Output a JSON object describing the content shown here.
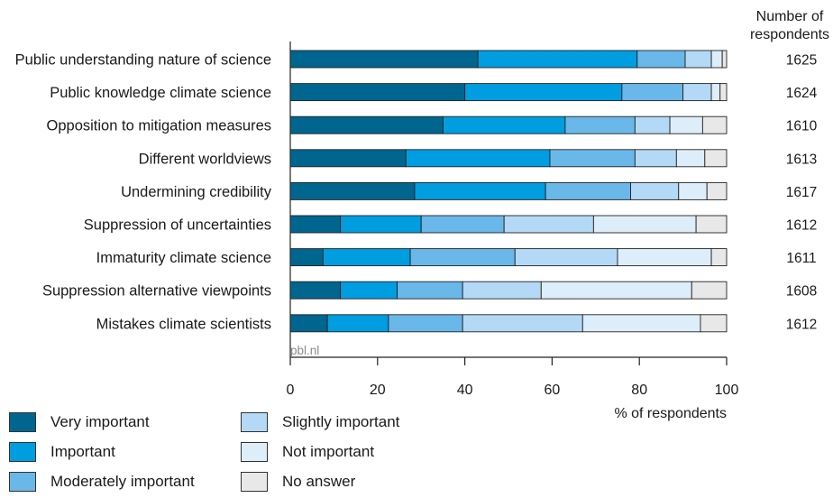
{
  "chart_data": {
    "type": "bar",
    "orientation": "horizontal",
    "stacked": true,
    "categories": [
      "Public understanding nature of science",
      "Public knowledge climate science",
      "Opposition to mitigation measures",
      "Different worldviews",
      "Undermining credibility",
      "Suppression of uncertainties",
      "Immaturity climate science",
      "Suppression alternative viewpoints",
      "Mistakes climate scientists"
    ],
    "respondents": [
      "1625",
      "1624",
      "1610",
      "1613",
      "1617",
      "1612",
      "1611",
      "1608",
      "1612"
    ],
    "respondents_header": [
      "Number of",
      "respondents"
    ],
    "series": [
      {
        "name": "Very important",
        "color": "#00658f",
        "values": [
          43,
          40,
          35,
          26.5,
          28.5,
          11.5,
          7.5,
          11.5,
          8.5
        ]
      },
      {
        "name": "Important",
        "color": "#009de0",
        "values": [
          36.5,
          36,
          28,
          33,
          30,
          18.5,
          20,
          13,
          14
        ]
      },
      {
        "name": "Moderately important",
        "color": "#6ab7e9",
        "values": [
          11,
          14,
          16,
          19.5,
          19.5,
          19,
          24,
          15,
          17
        ]
      },
      {
        "name": "Slightly important",
        "color": "#b3d9f6",
        "values": [
          6,
          6.5,
          8,
          9.5,
          11,
          20.5,
          23.5,
          18,
          27.5
        ]
      },
      {
        "name": "Not important",
        "color": "#ddeefa",
        "values": [
          2.5,
          2,
          7.5,
          6.5,
          6.5,
          23.5,
          21.5,
          34.5,
          27
        ]
      },
      {
        "name": "No answer",
        "color": "#e8e8e8",
        "values": [
          1,
          1.5,
          5.5,
          5,
          4.5,
          7,
          3.5,
          8,
          6
        ]
      }
    ],
    "x_ticks": [
      "0",
      "20",
      "40",
      "60",
      "80",
      "100"
    ],
    "xlabel": "% of respondents",
    "xlim": [
      0,
      100
    ],
    "source_note": "pbl.nl",
    "legend_position": "bottom-left"
  }
}
